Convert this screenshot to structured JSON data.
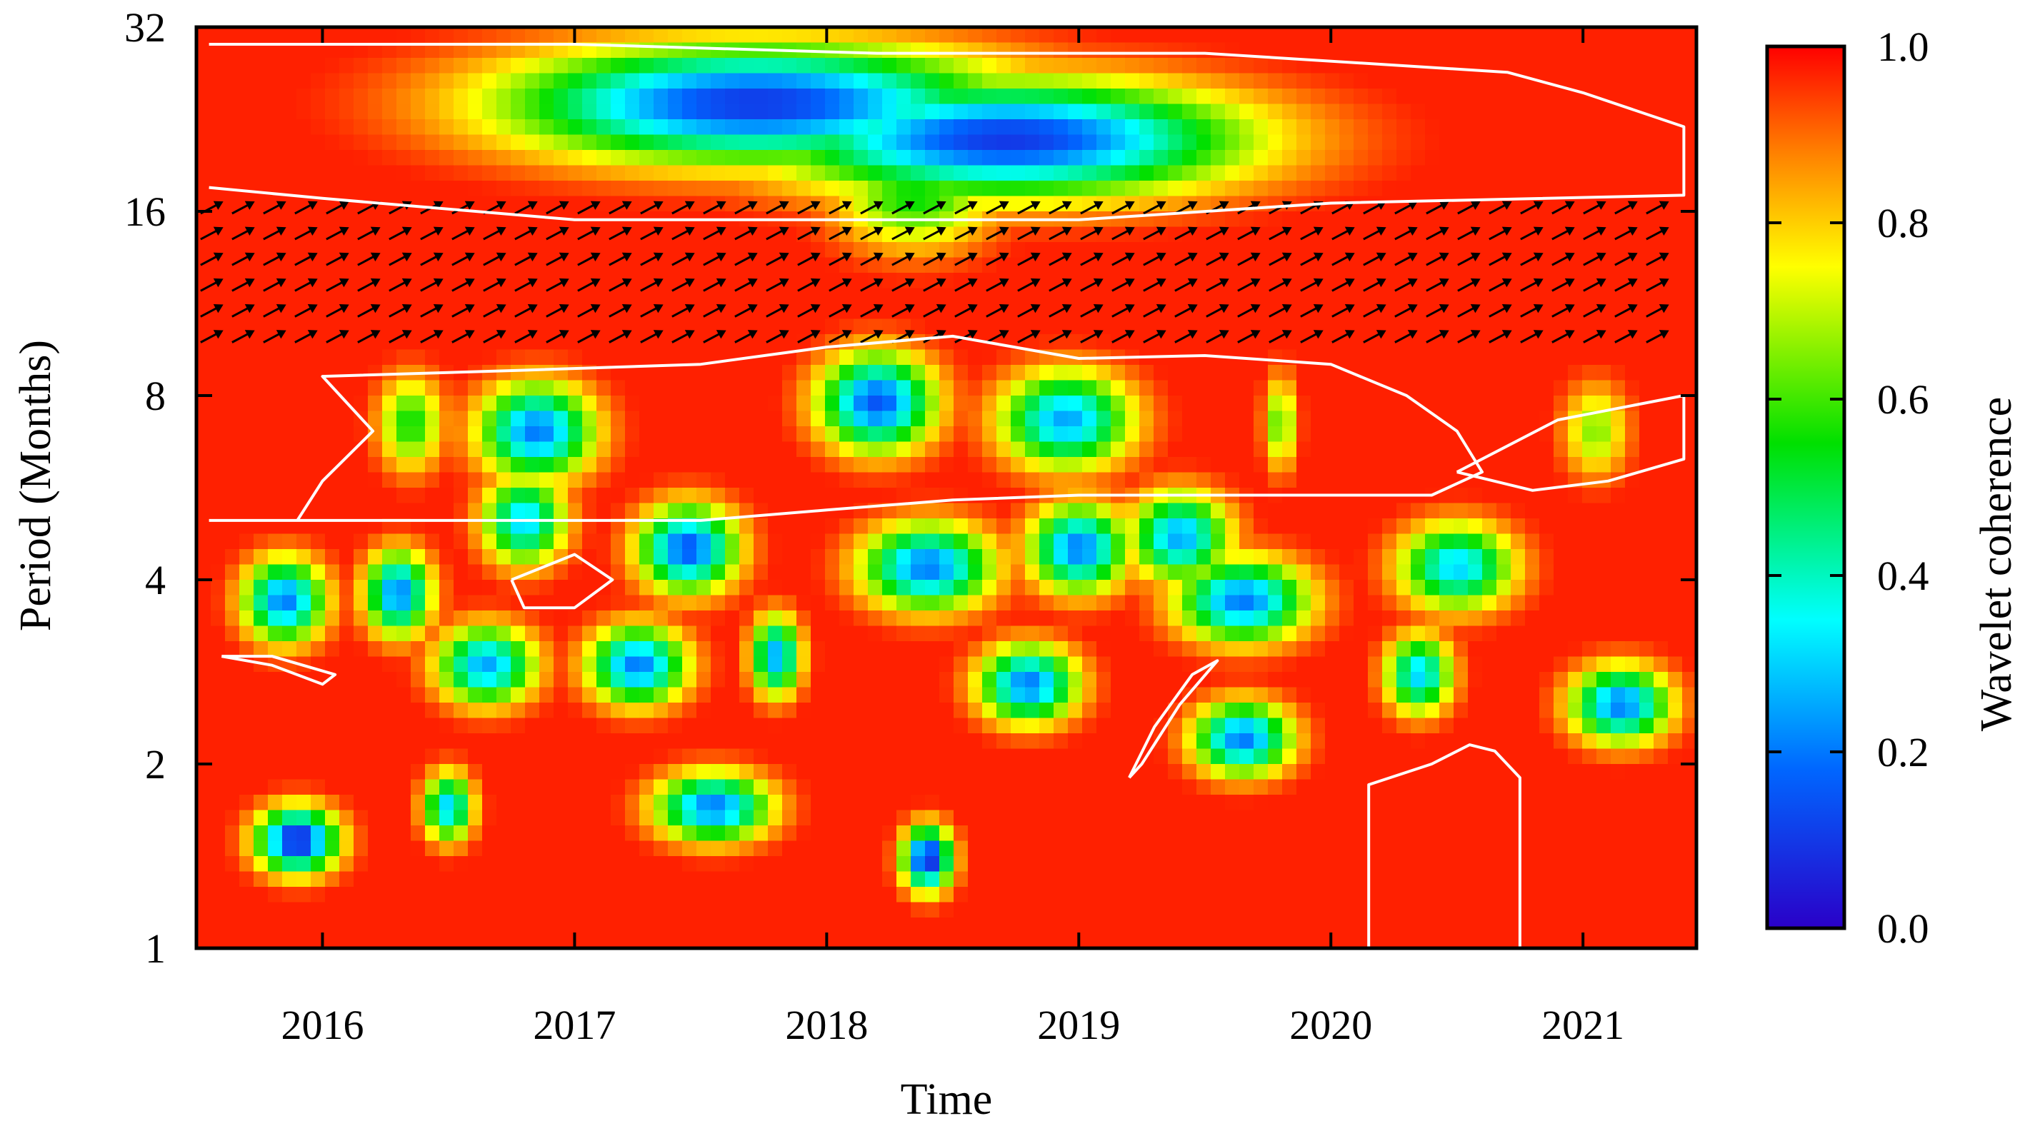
{
  "chart_data": {
    "type": "heatmap",
    "title": "",
    "xlabel": "Time",
    "ylabel": "Period (Months)",
    "colorbar_label": "Wavelet coherence",
    "x_ticks": [
      "2016",
      "2017",
      "2018",
      "2019",
      "2020",
      "2021"
    ],
    "x_tick_values": [
      2016,
      2017,
      2018,
      2019,
      2020,
      2021
    ],
    "xlim": [
      2015.5,
      2021.45
    ],
    "y_ticks": [
      "1",
      "2",
      "4",
      "8",
      "16",
      "32"
    ],
    "y_tick_values": [
      1,
      2,
      4,
      8,
      16,
      32
    ],
    "ylim": [
      1,
      32
    ],
    "y_scale": "log2",
    "colorbar_ticks": [
      "0.0",
      "0.2",
      "0.4",
      "0.6",
      "0.8",
      "1.0"
    ],
    "colorbar_tick_values": [
      0.0,
      0.2,
      0.4,
      0.6,
      0.8,
      1.0
    ],
    "colorbar_range": [
      0.0,
      1.0
    ],
    "background_coherence": 0.97,
    "colors": {
      "colormap": [
        "#2a00c8",
        "#0066ff",
        "#00ffff",
        "#00e000",
        "#ffff00",
        "#ff8000",
        "#ff0000"
      ],
      "contour": "#ffffff",
      "arrows": "#000000"
    },
    "low_coherence_regions": [
      {
        "t": 2017.72,
        "period": 24.0,
        "span_years": 1.55,
        "min": 0.1
      },
      {
        "t": 2018.72,
        "period": 21.0,
        "span_years": 1.45,
        "min": 0.1
      },
      {
        "t": 2018.35,
        "period": 17.0,
        "span_years": 0.5,
        "min": 0.55
      },
      {
        "t": 2016.35,
        "period": 7.2,
        "span_years": 0.2,
        "min": 0.55
      },
      {
        "t": 2016.85,
        "period": 7.0,
        "span_years": 0.35,
        "min": 0.2
      },
      {
        "t": 2018.2,
        "period": 7.8,
        "span_years": 0.35,
        "min": 0.15
      },
      {
        "t": 2018.95,
        "period": 7.3,
        "span_years": 0.4,
        "min": 0.25
      },
      {
        "t": 2019.8,
        "period": 7.2,
        "span_years": 0.1,
        "min": 0.6
      },
      {
        "t": 2021.05,
        "period": 7.0,
        "span_years": 0.2,
        "min": 0.65
      },
      {
        "t": 2016.8,
        "period": 5.0,
        "span_years": 0.25,
        "min": 0.3
      },
      {
        "t": 2017.45,
        "period": 4.5,
        "span_years": 0.3,
        "min": 0.15
      },
      {
        "t": 2018.4,
        "period": 4.2,
        "span_years": 0.4,
        "min": 0.2
      },
      {
        "t": 2019.0,
        "period": 4.5,
        "span_years": 0.3,
        "min": 0.2
      },
      {
        "t": 2019.4,
        "period": 4.7,
        "span_years": 0.3,
        "min": 0.25
      },
      {
        "t": 2015.85,
        "period": 3.7,
        "span_years": 0.25,
        "min": 0.2
      },
      {
        "t": 2016.3,
        "period": 3.8,
        "span_years": 0.2,
        "min": 0.2
      },
      {
        "t": 2019.65,
        "period": 3.7,
        "span_years": 0.4,
        "min": 0.2
      },
      {
        "t": 2020.5,
        "period": 4.2,
        "span_years": 0.35,
        "min": 0.3
      },
      {
        "t": 2016.65,
        "period": 2.9,
        "span_years": 0.3,
        "min": 0.25
      },
      {
        "t": 2017.25,
        "period": 2.9,
        "span_years": 0.3,
        "min": 0.2
      },
      {
        "t": 2017.8,
        "period": 3.0,
        "span_years": 0.15,
        "min": 0.25
      },
      {
        "t": 2018.8,
        "period": 2.7,
        "span_years": 0.3,
        "min": 0.2
      },
      {
        "t": 2019.65,
        "period": 2.2,
        "span_years": 0.3,
        "min": 0.2
      },
      {
        "t": 2020.35,
        "period": 2.8,
        "span_years": 0.2,
        "min": 0.3
      },
      {
        "t": 2021.15,
        "period": 2.5,
        "span_years": 0.3,
        "min": 0.2
      },
      {
        "t": 2015.9,
        "period": 1.5,
        "span_years": 0.25,
        "min": 0.05
      },
      {
        "t": 2016.5,
        "period": 1.7,
        "span_years": 0.15,
        "min": 0.3
      },
      {
        "t": 2017.55,
        "period": 1.7,
        "span_years": 0.35,
        "min": 0.2
      },
      {
        "t": 2018.4,
        "period": 1.4,
        "span_years": 0.15,
        "min": 0.05
      }
    ],
    "significant_contours": [
      {
        "name": "upper-band",
        "points": [
          [
            2015.55,
            30.0
          ],
          [
            2016.2,
            30.0
          ],
          [
            2017.0,
            30.0
          ],
          [
            2018.2,
            29.0
          ],
          [
            2019.5,
            29.0
          ],
          [
            2020.7,
            27.0
          ],
          [
            2021.0,
            25.0
          ],
          [
            2021.4,
            22.0
          ],
          [
            2021.4,
            17.0
          ],
          [
            2020.0,
            16.5
          ],
          [
            2019.0,
            15.5
          ],
          [
            2018.0,
            15.5
          ],
          [
            2017.0,
            15.5
          ],
          [
            2016.0,
            16.8
          ],
          [
            2015.55,
            17.5
          ]
        ]
      },
      {
        "name": "main-band",
        "points": [
          [
            2015.55,
            5.0
          ],
          [
            2015.9,
            5.0
          ],
          [
            2016.0,
            5.8
          ],
          [
            2016.2,
            7.0
          ],
          [
            2016.0,
            8.6
          ],
          [
            2016.8,
            8.8
          ],
          [
            2017.5,
            9.0
          ],
          [
            2018.0,
            9.6
          ],
          [
            2018.5,
            10.0
          ],
          [
            2019.0,
            9.2
          ],
          [
            2019.5,
            9.3
          ],
          [
            2020.0,
            9.0
          ],
          [
            2020.3,
            8.0
          ],
          [
            2020.5,
            7.0
          ],
          [
            2020.6,
            6.0
          ],
          [
            2020.4,
            5.5
          ],
          [
            2019.5,
            5.5
          ],
          [
            2019.0,
            5.5
          ],
          [
            2018.5,
            5.4
          ],
          [
            2018.0,
            5.2
          ],
          [
            2017.5,
            5.0
          ],
          [
            2017.0,
            5.0
          ],
          [
            2016.3,
            5.0
          ],
          [
            2015.55,
            5.0
          ]
        ]
      },
      {
        "name": "right-lobe",
        "points": [
          [
            2020.5,
            6.0
          ],
          [
            2020.9,
            7.3
          ],
          [
            2021.4,
            8.0
          ],
          [
            2021.4,
            6.3
          ],
          [
            2021.1,
            5.8
          ],
          [
            2020.8,
            5.6
          ],
          [
            2020.5,
            6.0
          ]
        ]
      },
      {
        "name": "small-box",
        "points": [
          [
            2016.75,
            4.0
          ],
          [
            2017.0,
            4.4
          ],
          [
            2017.15,
            4.0
          ],
          [
            2017.0,
            3.6
          ],
          [
            2016.8,
            3.6
          ],
          [
            2016.75,
            4.0
          ]
        ]
      },
      {
        "name": "left-lobe",
        "points": [
          [
            2015.6,
            3.0
          ],
          [
            2015.8,
            2.9
          ],
          [
            2016.0,
            2.7
          ],
          [
            2016.05,
            2.8
          ],
          [
            2015.8,
            3.0
          ],
          [
            2015.6,
            3.0
          ]
        ]
      },
      {
        "name": "slanted-lobe",
        "points": [
          [
            2019.2,
            1.9
          ],
          [
            2019.3,
            2.3
          ],
          [
            2019.45,
            2.8
          ],
          [
            2019.55,
            2.95
          ],
          [
            2019.4,
            2.5
          ],
          [
            2019.25,
            2.0
          ],
          [
            2019.2,
            1.9
          ]
        ]
      },
      {
        "name": "bottom-right-box",
        "points": [
          [
            2020.15,
            1.0
          ],
          [
            2020.15,
            1.85
          ],
          [
            2020.4,
            2.0
          ],
          [
            2020.55,
            2.15
          ],
          [
            2020.65,
            2.1
          ],
          [
            2020.75,
            1.9
          ],
          [
            2020.75,
            1.0
          ]
        ]
      }
    ],
    "arrow_region": {
      "period_min": 9.5,
      "period_max": 17.0,
      "direction": "right-up"
    }
  }
}
